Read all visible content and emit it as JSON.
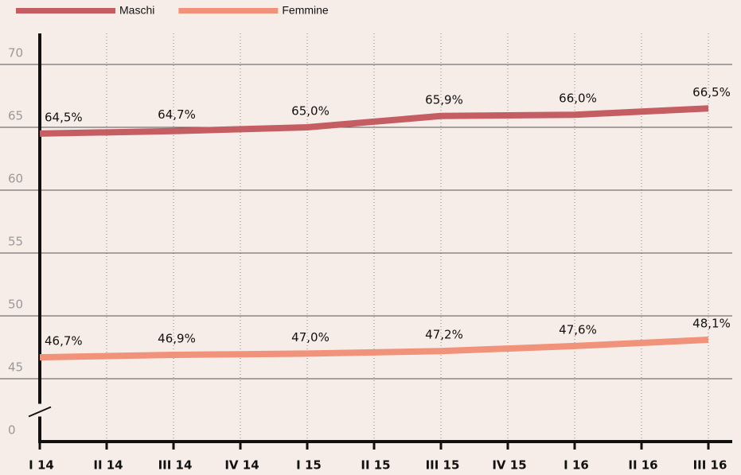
{
  "chart_data": {
    "type": "line",
    "categories": [
      "I 14",
      "II 14",
      "III 14",
      "IV 14",
      "I 15",
      "II 15",
      "III 15",
      "IV 15",
      "I 16",
      "II 16",
      "III 16"
    ],
    "series": [
      {
        "name": "Maschi",
        "color": "#c45e63",
        "values": [
          64.5,
          64.6,
          64.7,
          64.85,
          65.0,
          65.45,
          65.9,
          65.95,
          66.0,
          66.25,
          66.5
        ],
        "value_labels": [
          "64,5%",
          null,
          "64,7%",
          null,
          "65,0%",
          null,
          "65,9%",
          null,
          "66,0%",
          null,
          "66,5%"
        ]
      },
      {
        "name": "Femmine",
        "color": "#f0937a",
        "values": [
          46.7,
          46.8,
          46.9,
          46.95,
          47.0,
          47.1,
          47.2,
          47.4,
          47.6,
          47.85,
          48.1
        ],
        "value_labels": [
          "46,7%",
          null,
          "46,9%",
          null,
          "47,0%",
          null,
          "47,2%",
          null,
          "47,6%",
          null,
          "48,1%"
        ]
      }
    ],
    "ylim": [
      0,
      70
    ],
    "yticks": [
      0,
      45,
      50,
      55,
      60,
      65,
      70
    ],
    "axis_break": true,
    "grid": true
  }
}
